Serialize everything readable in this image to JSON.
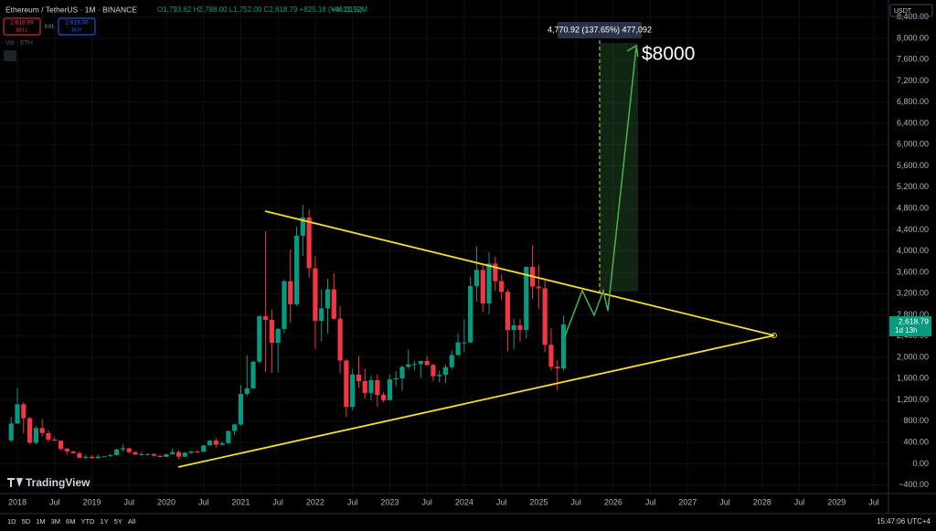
{
  "header": {
    "symbol": "Ethereum / TetherUS · 1M · BINANCE",
    "ohlc": "O1,793.62 H2,788.00 L1,752.00 C2,618.79 +825.18 (+46.01%)",
    "volume": "Vol 21.12M",
    "sell_price": "2,618.99",
    "sell": "SELL",
    "spread": "0.01",
    "buy_price": "2,619.00",
    "buy": "BUY",
    "vol_label": "Vol · ETH",
    "currency": "USDT",
    "brand": "TradingView",
    "clock": "15:47:06 UTC+4",
    "ranges": [
      "1D",
      "5D",
      "1M",
      "3M",
      "6M",
      "YTD",
      "1Y",
      "5Y",
      "All"
    ]
  },
  "chart_data": {
    "type": "candlestick",
    "annotation": "$8000",
    "measure": "4,770.92 (137.65%) 477,092",
    "up_color": "#089981",
    "down_color": "#f23645",
    "ylim": [
      -560,
      8720
    ],
    "yticks": [
      {
        "value": -400,
        "label": "−400.00"
      },
      {
        "value": 0,
        "label": "0.00"
      },
      {
        "value": 400,
        "label": "400.00"
      },
      {
        "value": 800,
        "label": "800.00"
      },
      {
        "value": 1200,
        "label": "1,200.00"
      },
      {
        "value": 1600,
        "label": "1,600.00"
      },
      {
        "value": 2000,
        "label": "2,000.00"
      },
      {
        "value": 2400,
        "label": "2,400.00"
      },
      {
        "value": 2800,
        "label": "2,800.00"
      },
      {
        "value": 3200,
        "label": "3,200.00"
      },
      {
        "value": 3600,
        "label": "3,600.00"
      },
      {
        "value": 4000,
        "label": "4,000.00"
      },
      {
        "value": 4400,
        "label": "4,400.00"
      },
      {
        "value": 4800,
        "label": "4,800.00"
      },
      {
        "value": 5200,
        "label": "5,200.00"
      },
      {
        "value": 5600,
        "label": "5,600.00"
      },
      {
        "value": 6000,
        "label": "6,000.00"
      },
      {
        "value": 6400,
        "label": "6,400.00"
      },
      {
        "value": 6800,
        "label": "6,800.00"
      },
      {
        "value": 7200,
        "label": "7,200.00"
      },
      {
        "value": 7600,
        "label": "7,600.00"
      },
      {
        "value": 8000,
        "label": "8,000.00"
      },
      {
        "value": 8400,
        "label": "8,400.00"
      }
    ],
    "xticks": [
      {
        "value": "2018-01",
        "label": "2018"
      },
      {
        "value": "2018-07",
        "label": "Jul"
      },
      {
        "value": "2019-01",
        "label": "2019"
      },
      {
        "value": "2019-07",
        "label": "Jul"
      },
      {
        "value": "2020-01",
        "label": "2020"
      },
      {
        "value": "2020-07",
        "label": "Jul"
      },
      {
        "value": "2021-01",
        "label": "2021"
      },
      {
        "value": "2021-07",
        "label": "Jul"
      },
      {
        "value": "2022-01",
        "label": "2022"
      },
      {
        "value": "2022-07",
        "label": "Jul"
      },
      {
        "value": "2023-01",
        "label": "2023"
      },
      {
        "value": "2023-07",
        "label": "Jul"
      },
      {
        "value": "2024-01",
        "label": "2024"
      },
      {
        "value": "2024-07",
        "label": "Jul"
      },
      {
        "value": "2025-01",
        "label": "2025"
      },
      {
        "value": "2025-07",
        "label": "Jul"
      },
      {
        "value": "2026-01",
        "label": "2026"
      },
      {
        "value": "2026-07",
        "label": "Jul"
      },
      {
        "value": "2027-01",
        "label": "2027"
      },
      {
        "value": "2027-07",
        "label": "Jul"
      },
      {
        "value": "2028-01",
        "label": "2028"
      },
      {
        "value": "2028-07",
        "label": "Jul"
      },
      {
        "value": "2029-01",
        "label": "2029"
      },
      {
        "value": "2029-07",
        "label": "Jul"
      }
    ],
    "last_price": {
      "value": 2618.79,
      "label": "2,618.79",
      "countdown": "1d 13h"
    },
    "x": [
      "2017-12",
      "2018-01",
      "2018-02",
      "2018-03",
      "2018-04",
      "2018-05",
      "2018-06",
      "2018-07",
      "2018-08",
      "2018-09",
      "2018-10",
      "2018-11",
      "2018-12",
      "2019-01",
      "2019-02",
      "2019-03",
      "2019-04",
      "2019-05",
      "2019-06",
      "2019-07",
      "2019-08",
      "2019-09",
      "2019-10",
      "2019-11",
      "2019-12",
      "2020-01",
      "2020-02",
      "2020-03",
      "2020-04",
      "2020-05",
      "2020-06",
      "2020-07",
      "2020-08",
      "2020-09",
      "2020-10",
      "2020-11",
      "2020-12",
      "2021-01",
      "2021-02",
      "2021-03",
      "2021-04",
      "2021-05",
      "2021-06",
      "2021-07",
      "2021-08",
      "2021-09",
      "2021-10",
      "2021-11",
      "2021-12",
      "2022-01",
      "2022-02",
      "2022-03",
      "2022-04",
      "2022-05",
      "2022-06",
      "2022-07",
      "2022-08",
      "2022-09",
      "2022-10",
      "2022-11",
      "2022-12",
      "2023-01",
      "2023-02",
      "2023-03",
      "2023-04",
      "2023-05",
      "2023-06",
      "2023-07",
      "2023-08",
      "2023-09",
      "2023-10",
      "2023-11",
      "2023-12",
      "2024-01",
      "2024-02",
      "2024-03",
      "2024-04",
      "2024-05",
      "2024-06",
      "2024-07",
      "2024-08",
      "2024-09",
      "2024-10",
      "2024-11",
      "2024-12",
      "2025-01",
      "2025-02",
      "2025-03",
      "2025-04",
      "2025-05"
    ],
    "open": [
      440,
      756,
      1118,
      855,
      395,
      670,
      577,
      455,
      433,
      282,
      232,
      197,
      113,
      132,
      106,
      135,
      141,
      160,
      268,
      290,
      218,
      172,
      180,
      182,
      152,
      129,
      180,
      218,
      133,
      206,
      231,
      225,
      345,
      434,
      360,
      386,
      616,
      737,
      1314,
      1418,
      1918,
      2773,
      2707,
      2275,
      2536,
      3433,
      3000,
      4288,
      4631,
      3676,
      2688,
      2921,
      3281,
      2727,
      1942,
      1071,
      1678,
      1553,
      1328,
      1572,
      1295,
      1196,
      1585,
      1605,
      1821,
      1870,
      1874,
      1934,
      1857,
      1646,
      1671,
      1815,
      2044,
      2282,
      2283,
      3340,
      3645,
      3014,
      3763,
      3433,
      3232,
      2513,
      2603,
      2518,
      3704,
      3332,
      3300,
      2237,
      1822,
      1793.62
    ],
    "high": [
      880,
      1420,
      1160,
      880,
      710,
      840,
      630,
      510,
      435,
      300,
      240,
      230,
      160,
      160,
      165,
      145,
      185,
      285,
      365,
      300,
      238,
      225,
      200,
      195,
      153,
      180,
      288,
      254,
      227,
      245,
      254,
      347,
      446,
      488,
      420,
      623,
      755,
      1476,
      2041,
      1943,
      2797,
      4372,
      2891,
      2551,
      3466,
      4027,
      4460,
      4868,
      4778,
      3900,
      3280,
      3478,
      3580,
      2970,
      1970,
      1786,
      2030,
      1790,
      1664,
      1680,
      1352,
      1680,
      1743,
      1855,
      2141,
      1930,
      1930,
      2030,
      1880,
      1750,
      1865,
      2135,
      2450,
      2717,
      3520,
      4093,
      3730,
      3975,
      3890,
      3560,
      3280,
      2728,
      2722,
      3680,
      4107,
      3745,
      3440,
      2550,
      1950,
      2788
    ],
    "low": [
      410,
      750,
      570,
      370,
      360,
      510,
      410,
      430,
      250,
      167,
      189,
      100,
      82,
      100,
      102,
      128,
      135,
      155,
      230,
      190,
      163,
      152,
      155,
      140,
      117,
      127,
      178,
      86,
      125,
      180,
      215,
      220,
      342,
      308,
      335,
      373,
      537,
      714,
      1270,
      1423,
      1890,
      1728,
      1707,
      1718,
      2451,
      2652,
      2970,
      3905,
      3500,
      2159,
      2300,
      2450,
      2700,
      1700,
      881,
      1006,
      1422,
      1220,
      1190,
      1073,
      1150,
      1190,
      1460,
      1370,
      1785,
      1760,
      1620,
      1840,
      1550,
      1530,
      1520,
      1780,
      2030,
      2100,
      2270,
      3050,
      2850,
      2815,
      3250,
      3090,
      2111,
      2150,
      2300,
      2357,
      3100,
      2920,
      2100,
      1760,
      1385,
      1752
    ],
    "close": [
      756,
      1118,
      855,
      395,
      670,
      577,
      455,
      433,
      282,
      232,
      197,
      113,
      132,
      106,
      135,
      141,
      160,
      268,
      290,
      218,
      172,
      180,
      182,
      152,
      129,
      180,
      218,
      133,
      206,
      231,
      225,
      345,
      434,
      360,
      386,
      616,
      737,
      1314,
      1418,
      1918,
      2773,
      2707,
      2275,
      2536,
      3433,
      3000,
      4288,
      4631,
      3676,
      2688,
      2921,
      3281,
      2727,
      1942,
      1071,
      1678,
      1553,
      1328,
      1572,
      1295,
      1196,
      1585,
      1605,
      1821,
      1870,
      1874,
      1934,
      1857,
      1646,
      1671,
      1815,
      2044,
      2282,
      2283,
      3340,
      3645,
      3014,
      3763,
      3433,
      3232,
      2513,
      2603,
      2518,
      3704,
      3332,
      3300,
      2237,
      1822,
      1794,
      2618.79
    ]
  }
}
